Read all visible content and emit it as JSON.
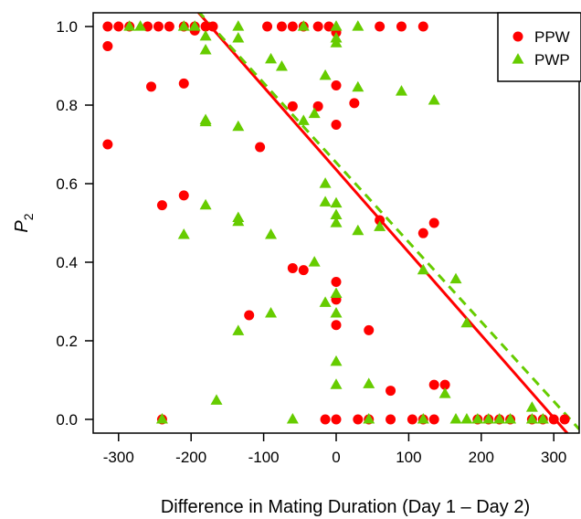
{
  "chart_data": {
    "type": "scatter",
    "xlabel": "Difference in Mating Duration (Day 1 – Day 2)",
    "ylabel_main": "P",
    "ylabel_sub": "2",
    "xlim": [
      -335,
      335
    ],
    "ylim": [
      -0.035,
      1.035
    ],
    "xticks": [
      -300,
      -200,
      -100,
      0,
      100,
      200,
      300
    ],
    "xtick_labels": [
      "-300",
      "-200",
      "-100",
      "0",
      "100",
      "200",
      "300"
    ],
    "yticks": [
      0.0,
      0.2,
      0.4,
      0.6,
      0.8,
      1.0
    ],
    "ytick_labels": [
      "0.0",
      "0.2",
      "0.4",
      "0.6",
      "0.8",
      "1.0"
    ],
    "grid": false,
    "legend_position": "top-right",
    "series": [
      {
        "name": "PPW",
        "marker": "circle",
        "color": "#ff0000",
        "fit": {
          "style": "solid",
          "intercept": 0.6357,
          "slope": -0.002106
        },
        "points": [
          [
            -315,
            1.0
          ],
          [
            -300,
            1.0
          ],
          [
            -285,
            1.0
          ],
          [
            -260,
            1.0
          ],
          [
            -245,
            1.0
          ],
          [
            -230,
            1.0
          ],
          [
            -210,
            1.0
          ],
          [
            -195,
            1.0
          ],
          [
            -180,
            1.0
          ],
          [
            -170,
            1.0
          ],
          [
            -95,
            1.0
          ],
          [
            -75,
            1.0
          ],
          [
            -60,
            1.0
          ],
          [
            -45,
            1.0
          ],
          [
            -25,
            1.0
          ],
          [
            -10,
            1.0
          ],
          [
            60,
            1.0
          ],
          [
            90,
            1.0
          ],
          [
            120,
            1.0
          ],
          [
            -315,
            0.95
          ],
          [
            -195,
            0.99
          ],
          [
            0,
            0.985
          ],
          [
            -315,
            0.7
          ],
          [
            -255,
            0.847
          ],
          [
            -210,
            0.855
          ],
          [
            -60,
            0.797
          ],
          [
            -25,
            0.797
          ],
          [
            25,
            0.805
          ],
          [
            0,
            0.85
          ],
          [
            0,
            0.75
          ],
          [
            -105,
            0.693
          ],
          [
            -240,
            0.545
          ],
          [
            -210,
            0.57
          ],
          [
            60,
            0.507
          ],
          [
            120,
            0.474
          ],
          [
            135,
            0.5
          ],
          [
            -60,
            0.385
          ],
          [
            -45,
            0.38
          ],
          [
            0,
            0.35
          ],
          [
            0,
            0.305
          ],
          [
            -120,
            0.265
          ],
          [
            0,
            0.24
          ],
          [
            45,
            0.227
          ],
          [
            75,
            0.073
          ],
          [
            135,
            0.088
          ],
          [
            150,
            0.088
          ],
          [
            -240,
            0.0
          ],
          [
            -15,
            0.0
          ],
          [
            0,
            0.0
          ],
          [
            30,
            0.0
          ],
          [
            45,
            0.0
          ],
          [
            75,
            0.0
          ],
          [
            105,
            0.0
          ],
          [
            120,
            0.0
          ],
          [
            135,
            0.0
          ],
          [
            195,
            0.0
          ],
          [
            210,
            0.0
          ],
          [
            225,
            0.0
          ],
          [
            240,
            0.0
          ],
          [
            270,
            0.0
          ],
          [
            285,
            0.0
          ],
          [
            300,
            0.0
          ],
          [
            315,
            0.0
          ]
        ]
      },
      {
        "name": "PWP",
        "marker": "triangle",
        "color": "#66cc00",
        "fit": {
          "style": "dashed",
          "intercept": 0.6537,
          "slope": -0.002026
        },
        "points": [
          [
            -285,
            1.0
          ],
          [
            -270,
            1.0
          ],
          [
            -210,
            1.0
          ],
          [
            -195,
            1.0
          ],
          [
            -135,
            1.0
          ],
          [
            -45,
            1.0
          ],
          [
            0,
            1.0
          ],
          [
            30,
            1.0
          ],
          [
            -180,
            0.975
          ],
          [
            -135,
            0.97
          ],
          [
            0,
            0.97
          ],
          [
            0,
            0.958
          ],
          [
            -180,
            0.94
          ],
          [
            -90,
            0.917
          ],
          [
            -75,
            0.898
          ],
          [
            -15,
            0.875
          ],
          [
            30,
            0.845
          ],
          [
            90,
            0.835
          ],
          [
            135,
            0.812
          ],
          [
            -30,
            0.778
          ],
          [
            -45,
            0.76
          ],
          [
            -180,
            0.762
          ],
          [
            -180,
            0.757
          ],
          [
            -135,
            0.745
          ],
          [
            -15,
            0.6
          ],
          [
            0,
            0.55
          ],
          [
            0,
            0.52
          ],
          [
            -180,
            0.545
          ],
          [
            -15,
            0.553
          ],
          [
            -135,
            0.513
          ],
          [
            -135,
            0.503
          ],
          [
            -210,
            0.47
          ],
          [
            -90,
            0.47
          ],
          [
            0,
            0.5
          ],
          [
            30,
            0.48
          ],
          [
            60,
            0.49
          ],
          [
            -30,
            0.4
          ],
          [
            120,
            0.38
          ],
          [
            165,
            0.357
          ],
          [
            -15,
            0.297
          ],
          [
            0,
            0.32
          ],
          [
            0,
            0.27
          ],
          [
            -90,
            0.27
          ],
          [
            -135,
            0.225
          ],
          [
            180,
            0.245
          ],
          [
            0,
            0.147
          ],
          [
            0,
            0.088
          ],
          [
            45,
            0.09
          ],
          [
            150,
            0.065
          ],
          [
            -165,
            0.048
          ],
          [
            270,
            0.03
          ],
          [
            -240,
            0.0
          ],
          [
            -60,
            0.0
          ],
          [
            45,
            0.0
          ],
          [
            120,
            0.0
          ],
          [
            165,
            0.0
          ],
          [
            180,
            0.0
          ],
          [
            195,
            0.0
          ],
          [
            210,
            0.0
          ],
          [
            225,
            0.0
          ],
          [
            240,
            0.0
          ],
          [
            270,
            0.0
          ],
          [
            285,
            0.0
          ]
        ]
      }
    ]
  }
}
